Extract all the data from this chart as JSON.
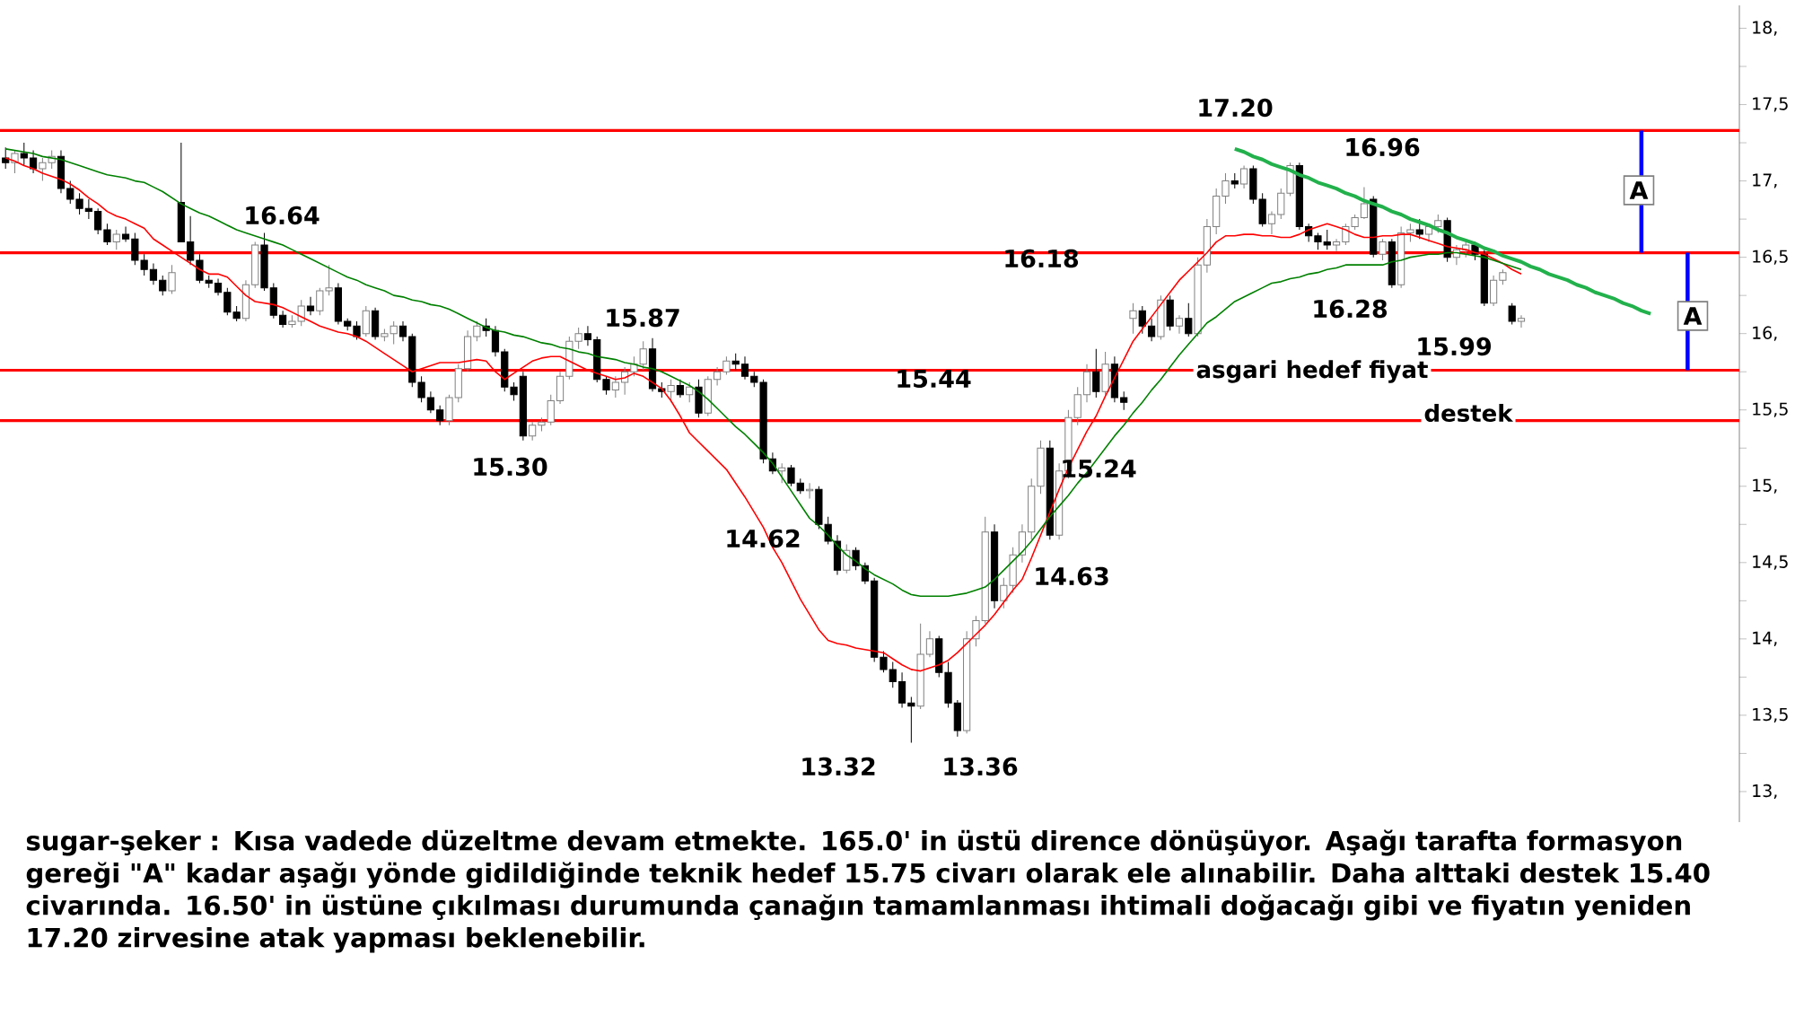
{
  "chart_data": {
    "type": "candlestick",
    "categories": [
      null,
      null,
      null,
      null,
      null,
      null,
      null,
      null,
      null,
      null,
      null,
      null,
      null,
      null,
      null,
      null,
      null,
      null,
      null,
      null,
      null,
      null,
      null,
      null,
      null,
      null,
      null,
      null,
      null,
      null,
      null,
      null,
      null,
      null,
      null,
      null,
      null,
      null,
      null,
      null,
      null,
      null,
      null,
      null,
      null,
      null,
      null,
      null,
      null,
      null,
      null,
      null,
      null,
      null,
      null,
      null,
      null,
      null,
      null,
      null,
      null,
      null,
      null,
      null,
      null,
      null,
      null,
      null,
      null,
      null,
      null,
      null,
      null,
      null,
      null,
      null,
      null,
      null,
      null,
      null,
      null,
      null,
      null,
      null,
      null,
      null,
      null,
      null,
      null,
      null,
      null,
      null,
      null,
      null,
      null,
      null,
      null,
      null,
      null,
      null,
      null,
      null,
      null,
      null,
      null,
      null,
      null,
      null,
      null,
      null,
      null,
      null,
      null,
      null,
      null,
      null,
      null,
      null,
      null,
      null,
      null,
      null,
      null,
      null,
      null,
      null,
      null,
      null,
      null,
      null,
      null,
      null,
      null,
      null,
      null,
      null,
      null,
      null,
      null,
      null,
      null,
      null,
      null,
      null,
      null,
      null,
      null,
      null,
      null,
      null,
      null,
      null,
      null,
      null,
      null,
      null,
      null,
      null,
      null,
      null,
      null,
      null,
      null,
      null,
      null,
      null,
      null,
      null,
      null,
      null,
      null,
      null,
      null,
      null,
      null,
      null,
      null,
      null,
      null,
      null,
      null,
      null,
      null,
      null,
      null,
      null,
      null,
      null
    ],
    "ohlc": [
      [
        17.15,
        17.22,
        17.08,
        17.12
      ],
      [
        17.12,
        17.2,
        17.05,
        17.18
      ],
      [
        17.18,
        17.25,
        17.1,
        17.15
      ],
      [
        17.15,
        17.2,
        17.05,
        17.08
      ],
      [
        17.08,
        17.15,
        17.0,
        17.12
      ],
      [
        17.12,
        17.2,
        17.08,
        17.16
      ],
      [
        17.16,
        17.2,
        16.92,
        16.95
      ],
      [
        16.95,
        17.0,
        16.85,
        16.88
      ],
      [
        16.88,
        16.92,
        16.78,
        16.82
      ],
      [
        16.82,
        16.88,
        16.75,
        16.8
      ],
      [
        16.8,
        16.82,
        16.65,
        16.68
      ],
      [
        16.68,
        16.72,
        16.58,
        16.6
      ],
      [
        16.6,
        16.68,
        16.55,
        16.65
      ],
      [
        16.65,
        16.7,
        16.6,
        16.62
      ],
      [
        16.62,
        16.66,
        16.45,
        16.48
      ],
      [
        16.48,
        16.52,
        16.38,
        16.42
      ],
      [
        16.42,
        16.46,
        16.32,
        16.35
      ],
      [
        16.35,
        16.38,
        16.25,
        16.28
      ],
      [
        16.28,
        16.45,
        16.26,
        16.4
      ],
      [
        16.86,
        17.25,
        16.6,
        16.6
      ],
      [
        16.6,
        16.77,
        16.45,
        16.48
      ],
      [
        16.48,
        16.52,
        16.33,
        16.35
      ],
      [
        16.35,
        16.38,
        16.3,
        16.33
      ],
      [
        16.33,
        16.36,
        16.25,
        16.27
      ],
      [
        16.27,
        16.3,
        16.12,
        16.14
      ],
      [
        16.14,
        16.18,
        16.08,
        16.1
      ],
      [
        16.1,
        16.35,
        16.08,
        16.32
      ],
      [
        16.32,
        16.6,
        16.3,
        16.58
      ],
      [
        16.58,
        16.66,
        16.28,
        16.3
      ],
      [
        16.3,
        16.33,
        16.1,
        16.12
      ],
      [
        16.12,
        16.15,
        16.04,
        16.06
      ],
      [
        16.06,
        16.12,
        16.04,
        16.08
      ],
      [
        16.08,
        16.22,
        16.05,
        16.18
      ],
      [
        16.18,
        16.24,
        16.12,
        16.15
      ],
      [
        16.15,
        16.3,
        16.12,
        16.28
      ],
      [
        16.28,
        16.45,
        16.25,
        16.3
      ],
      [
        16.3,
        16.33,
        16.06,
        16.08
      ],
      [
        16.08,
        16.1,
        16.02,
        16.05
      ],
      [
        16.05,
        16.08,
        15.96,
        15.98
      ],
      [
        16.0,
        16.18,
        15.98,
        16.15
      ],
      [
        16.15,
        16.17,
        15.96,
        15.98
      ],
      [
        15.98,
        16.03,
        15.95,
        16.0
      ],
      [
        16.0,
        16.08,
        15.93,
        16.05
      ],
      [
        16.05,
        16.08,
        15.95,
        15.98
      ],
      [
        15.98,
        16.0,
        15.65,
        15.68
      ],
      [
        15.68,
        15.72,
        15.55,
        15.58
      ],
      [
        15.58,
        15.62,
        15.48,
        15.5
      ],
      [
        15.5,
        15.53,
        15.4,
        15.43
      ],
      [
        15.43,
        15.6,
        15.4,
        15.58
      ],
      [
        15.58,
        15.8,
        15.55,
        15.77
      ],
      [
        15.77,
        16.02,
        15.75,
        15.98
      ],
      [
        15.98,
        16.08,
        15.95,
        16.05
      ],
      [
        16.05,
        16.1,
        15.98,
        16.02
      ],
      [
        16.02,
        16.05,
        15.85,
        15.88
      ],
      [
        15.88,
        15.9,
        15.62,
        15.65
      ],
      [
        15.65,
        15.68,
        15.56,
        15.6
      ],
      [
        15.72,
        15.75,
        15.3,
        15.33
      ],
      [
        15.33,
        15.42,
        15.3,
        15.4
      ],
      [
        15.4,
        15.45,
        15.36,
        15.42
      ],
      [
        15.42,
        15.6,
        15.4,
        15.56
      ],
      [
        15.56,
        15.75,
        15.54,
        15.72
      ],
      [
        15.72,
        15.98,
        15.7,
        15.95
      ],
      [
        15.95,
        16.04,
        15.9,
        16.0
      ],
      [
        16.0,
        16.05,
        15.92,
        15.96
      ],
      [
        15.96,
        15.98,
        15.68,
        15.7
      ],
      [
        15.7,
        15.72,
        15.6,
        15.63
      ],
      [
        15.63,
        15.72,
        15.58,
        15.68
      ],
      [
        15.68,
        15.78,
        15.6,
        15.75
      ],
      [
        15.75,
        15.85,
        15.72,
        15.8
      ],
      [
        15.8,
        15.95,
        15.76,
        15.9
      ],
      [
        15.9,
        15.97,
        15.62,
        15.64
      ],
      [
        15.64,
        15.68,
        15.58,
        15.62
      ],
      [
        15.62,
        15.7,
        15.55,
        15.66
      ],
      [
        15.66,
        15.7,
        15.58,
        15.6
      ],
      [
        15.6,
        15.68,
        15.55,
        15.65
      ],
      [
        15.65,
        15.7,
        15.45,
        15.48
      ],
      [
        15.48,
        15.72,
        15.46,
        15.7
      ],
      [
        15.7,
        15.78,
        15.66,
        15.75
      ],
      [
        15.75,
        15.85,
        15.73,
        15.82
      ],
      [
        15.82,
        15.87,
        15.76,
        15.8
      ],
      [
        15.8,
        15.85,
        15.7,
        15.72
      ],
      [
        15.72,
        15.75,
        15.65,
        15.68
      ],
      [
        15.68,
        15.7,
        15.15,
        15.18
      ],
      [
        15.18,
        15.22,
        15.08,
        15.1
      ],
      [
        15.1,
        15.15,
        15.02,
        15.12
      ],
      [
        15.12,
        15.14,
        15.0,
        15.02
      ],
      [
        15.02,
        15.05,
        14.95,
        14.97
      ],
      [
        14.97,
        15.02,
        14.92,
        14.98
      ],
      [
        14.98,
        15.0,
        14.72,
        14.75
      ],
      [
        14.75,
        14.8,
        14.62,
        14.64
      ],
      [
        14.64,
        14.68,
        14.42,
        14.45
      ],
      [
        14.45,
        14.62,
        14.43,
        14.58
      ],
      [
        14.58,
        14.6,
        14.45,
        14.48
      ],
      [
        14.48,
        14.5,
        14.36,
        14.38
      ],
      [
        14.38,
        14.4,
        13.85,
        13.88
      ],
      [
        13.88,
        13.92,
        13.78,
        13.8
      ],
      [
        13.8,
        13.85,
        13.68,
        13.72
      ],
      [
        13.72,
        13.78,
        13.55,
        13.58
      ],
      [
        13.58,
        13.62,
        13.32,
        13.56
      ],
      [
        13.56,
        14.1,
        13.54,
        13.9
      ],
      [
        13.9,
        14.05,
        13.88,
        14.0
      ],
      [
        14.0,
        14.02,
        13.75,
        13.78
      ],
      [
        13.78,
        13.85,
        13.55,
        13.58
      ],
      [
        13.58,
        13.6,
        13.36,
        13.4
      ],
      [
        13.4,
        14.05,
        13.38,
        14.0
      ],
      [
        14.0,
        14.15,
        13.95,
        14.12
      ],
      [
        14.12,
        14.8,
        14.1,
        14.7
      ],
      [
        14.7,
        14.75,
        14.2,
        14.25
      ],
      [
        14.25,
        14.4,
        14.2,
        14.35
      ],
      [
        14.35,
        14.6,
        14.3,
        14.55
      ],
      [
        14.55,
        14.75,
        14.5,
        14.7
      ],
      [
        14.7,
        15.05,
        14.65,
        15.0
      ],
      [
        15.0,
        15.3,
        14.95,
        15.25
      ],
      [
        15.25,
        15.3,
        14.65,
        14.68
      ],
      [
        14.68,
        15.15,
        14.65,
        15.1
      ],
      [
        15.1,
        15.5,
        15.05,
        15.45
      ],
      [
        15.45,
        15.65,
        15.4,
        15.6
      ],
      [
        15.6,
        15.8,
        15.55,
        15.75
      ],
      [
        15.75,
        15.9,
        15.58,
        15.62
      ],
      [
        15.62,
        15.88,
        15.6,
        15.8
      ],
      [
        15.8,
        15.85,
        15.55,
        15.58
      ],
      [
        15.58,
        15.62,
        15.5,
        15.55
      ],
      [
        16.1,
        16.2,
        16.0,
        16.15
      ],
      [
        16.15,
        16.18,
        16.0,
        16.05
      ],
      [
        16.05,
        16.1,
        15.95,
        15.98
      ],
      [
        15.98,
        16.25,
        15.96,
        16.22
      ],
      [
        16.22,
        16.25,
        16.02,
        16.05
      ],
      [
        16.05,
        16.12,
        16.0,
        16.1
      ],
      [
        16.1,
        16.2,
        15.98,
        16.0
      ],
      [
        16.0,
        16.5,
        15.98,
        16.45
      ],
      [
        16.45,
        16.75,
        16.4,
        16.7
      ],
      [
        16.7,
        16.95,
        16.65,
        16.9
      ],
      [
        16.9,
        17.05,
        16.85,
        17.0
      ],
      [
        17.0,
        17.05,
        16.95,
        16.98
      ],
      [
        16.98,
        17.1,
        16.95,
        17.08
      ],
      [
        17.08,
        17.1,
        16.85,
        16.88
      ],
      [
        16.88,
        16.92,
        16.7,
        16.72
      ],
      [
        16.72,
        16.8,
        16.65,
        16.78
      ],
      [
        16.78,
        16.95,
        16.75,
        16.92
      ],
      [
        16.92,
        17.12,
        16.9,
        17.1
      ],
      [
        17.1,
        17.12,
        16.68,
        16.7
      ],
      [
        16.7,
        16.72,
        16.6,
        16.64
      ],
      [
        16.64,
        16.66,
        16.55,
        16.6
      ],
      [
        16.6,
        16.68,
        16.55,
        16.58
      ],
      [
        16.58,
        16.62,
        16.54,
        16.6
      ],
      [
        16.6,
        16.72,
        16.58,
        16.7
      ],
      [
        16.7,
        16.78,
        16.68,
        16.76
      ],
      [
        16.76,
        16.96,
        16.75,
        16.85
      ],
      [
        16.88,
        16.9,
        16.5,
        16.52
      ],
      [
        16.52,
        16.62,
        16.48,
        16.6
      ],
      [
        16.6,
        16.62,
        16.3,
        16.32
      ],
      [
        16.32,
        16.7,
        16.3,
        16.66
      ],
      [
        16.66,
        16.72,
        16.6,
        16.68
      ],
      [
        16.68,
        16.75,
        16.62,
        16.65
      ],
      [
        16.65,
        16.72,
        16.6,
        16.7
      ],
      [
        16.7,
        16.78,
        16.66,
        16.74
      ],
      [
        16.74,
        16.76,
        16.47,
        16.5
      ],
      [
        16.5,
        16.58,
        16.45,
        16.55
      ],
      [
        16.55,
        16.62,
        16.5,
        16.58
      ],
      [
        16.58,
        16.6,
        16.48,
        16.52
      ],
      [
        16.52,
        16.55,
        16.18,
        16.2
      ],
      [
        16.2,
        16.38,
        16.18,
        16.35
      ],
      [
        16.35,
        16.42,
        16.32,
        16.4
      ],
      [
        16.18,
        16.2,
        16.06,
        16.08
      ],
      [
        16.08,
        16.12,
        16.04,
        16.1
      ],
      null,
      null,
      null,
      null,
      null,
      null,
      null,
      null,
      null,
      null,
      null,
      null,
      null,
      null,
      null,
      null,
      null,
      null,
      null,
      null,
      null,
      null,
      null
    ],
    "series": [
      {
        "type": "line",
        "color": "#ff0000",
        "values": [
          17.15,
          17.13,
          17.1,
          17.08,
          17.05,
          17.03,
          17.01,
          16.98,
          16.94,
          16.89,
          16.85,
          16.8,
          16.77,
          16.75,
          16.72,
          16.69,
          16.62,
          16.58,
          16.54,
          16.5,
          16.46,
          16.42,
          16.39,
          16.39,
          16.37,
          16.31,
          16.25,
          16.21,
          16.2,
          16.19,
          16.17,
          16.14,
          16.11,
          16.08,
          16.05,
          16.03,
          16.01,
          16.0,
          15.98,
          15.95,
          15.91,
          15.87,
          15.83,
          15.79,
          15.75,
          15.77,
          15.79,
          15.81,
          15.81,
          15.81,
          15.82,
          15.83,
          15.82,
          15.75,
          15.7,
          15.74,
          15.78,
          15.82,
          15.84,
          15.85,
          15.85,
          15.82,
          15.79,
          15.76,
          15.74,
          15.72,
          15.7,
          15.71,
          15.74,
          15.72,
          15.68,
          15.64,
          15.56,
          15.46,
          15.35,
          15.29,
          15.23,
          15.17,
          15.11,
          15.02,
          14.93,
          14.83,
          14.73,
          14.6,
          14.5,
          14.38,
          14.26,
          14.16,
          14.06,
          13.99,
          13.97,
          13.96,
          13.94,
          13.93,
          13.92,
          13.91,
          13.87,
          13.83,
          13.8,
          13.79,
          13.81,
          13.83,
          13.86,
          13.91,
          13.97,
          14.03,
          14.09,
          14.16,
          14.24,
          14.32,
          14.39,
          14.53,
          14.68,
          14.83,
          14.98,
          15.12,
          15.24,
          15.36,
          15.46,
          15.59,
          15.71,
          15.83,
          15.95,
          16.03,
          16.11,
          16.19,
          16.27,
          16.35,
          16.41,
          16.47,
          16.53,
          16.6,
          16.64,
          16.64,
          16.65,
          16.65,
          16.64,
          16.64,
          16.63,
          16.63,
          16.65,
          16.68,
          16.7,
          16.72,
          16.7,
          16.68,
          16.65,
          16.63,
          16.63,
          16.64,
          16.64,
          16.65,
          16.65,
          16.63,
          16.61,
          16.59,
          16.57,
          16.56,
          16.55,
          16.53,
          16.52,
          16.49,
          16.46,
          16.42,
          16.39,
          null,
          null,
          null,
          null,
          null,
          null,
          null,
          null,
          null,
          null,
          null,
          null,
          null,
          null,
          null,
          null,
          null,
          null,
          null,
          null,
          null,
          null,
          null
        ]
      },
      {
        "type": "line",
        "color": "#008000",
        "values": [
          17.21,
          17.2,
          17.19,
          17.18,
          17.16,
          17.15,
          17.14,
          17.12,
          17.1,
          17.08,
          17.06,
          17.04,
          17.03,
          17.02,
          17.0,
          16.99,
          16.96,
          16.93,
          16.89,
          16.85,
          16.82,
          16.79,
          16.77,
          16.74,
          16.71,
          16.68,
          16.66,
          16.64,
          16.62,
          16.6,
          16.58,
          16.55,
          16.52,
          16.49,
          16.46,
          16.43,
          16.4,
          16.37,
          16.35,
          16.32,
          16.3,
          16.28,
          16.25,
          16.24,
          16.22,
          16.21,
          16.19,
          16.18,
          16.16,
          16.13,
          16.1,
          16.07,
          16.04,
          16.02,
          16.01,
          15.99,
          15.98,
          15.96,
          15.94,
          15.93,
          15.91,
          15.9,
          15.88,
          15.87,
          15.85,
          15.84,
          15.83,
          15.81,
          15.8,
          15.78,
          15.77,
          15.75,
          15.72,
          15.69,
          15.66,
          15.62,
          15.57,
          15.51,
          15.45,
          15.39,
          15.34,
          15.28,
          15.22,
          15.15,
          15.06,
          14.97,
          14.88,
          14.79,
          14.74,
          14.68,
          14.61,
          14.55,
          14.51,
          14.46,
          14.42,
          14.39,
          14.36,
          14.32,
          14.29,
          14.28,
          14.28,
          14.28,
          14.28,
          14.29,
          14.3,
          14.32,
          14.34,
          14.39,
          14.45,
          14.51,
          14.57,
          14.64,
          14.72,
          14.8,
          14.87,
          14.94,
          15.02,
          15.09,
          15.17,
          15.25,
          15.33,
          15.4,
          15.48,
          15.55,
          15.63,
          15.7,
          15.78,
          15.86,
          15.93,
          16.0,
          16.07,
          16.11,
          16.16,
          16.21,
          16.24,
          16.27,
          16.3,
          16.33,
          16.34,
          16.36,
          16.37,
          16.39,
          16.4,
          16.42,
          16.43,
          16.45,
          16.45,
          16.45,
          16.45,
          16.45,
          16.47,
          16.48,
          16.5,
          16.51,
          16.52,
          16.52,
          16.53,
          16.53,
          16.52,
          16.51,
          16.5,
          16.48,
          16.46,
          16.44,
          16.42,
          null,
          null,
          null,
          null,
          null,
          null,
          null,
          null,
          null,
          null,
          null,
          null,
          null,
          null,
          null,
          null,
          null,
          null,
          null,
          null,
          null,
          null,
          null
        ]
      },
      {
        "type": "line",
        "color": "#22b14c",
        "values": [
          null,
          null,
          null,
          null,
          null,
          null,
          null,
          null,
          null,
          null,
          null,
          null,
          null,
          null,
          null,
          null,
          null,
          null,
          null,
          null,
          null,
          null,
          null,
          null,
          null,
          null,
          null,
          null,
          null,
          null,
          null,
          null,
          null,
          null,
          null,
          null,
          null,
          null,
          null,
          null,
          null,
          null,
          null,
          null,
          null,
          null,
          null,
          null,
          null,
          null,
          null,
          null,
          null,
          null,
          null,
          null,
          null,
          null,
          null,
          null,
          null,
          null,
          null,
          null,
          null,
          null,
          null,
          null,
          null,
          null,
          null,
          null,
          null,
          null,
          null,
          null,
          null,
          null,
          null,
          null,
          null,
          null,
          null,
          null,
          null,
          null,
          null,
          null,
          null,
          null,
          null,
          null,
          null,
          null,
          null,
          null,
          null,
          null,
          null,
          null,
          null,
          null,
          null,
          null,
          null,
          null,
          null,
          null,
          null,
          null,
          null,
          null,
          null,
          null,
          null,
          null,
          null,
          null,
          null,
          null,
          null,
          null,
          null,
          null,
          null,
          null,
          null,
          null,
          null,
          null,
          null,
          null,
          null,
          17.21,
          17.19,
          17.16,
          17.14,
          17.11,
          17.09,
          17.07,
          17.04,
          17.02,
          16.99,
          16.97,
          16.95,
          16.92,
          16.9,
          16.87,
          16.85,
          16.83,
          16.8,
          16.78,
          16.75,
          16.73,
          16.71,
          16.68,
          16.66,
          16.63,
          16.61,
          16.59,
          16.56,
          16.54,
          16.51,
          16.49,
          16.47,
          16.44,
          16.42,
          16.39,
          16.37,
          16.35,
          16.32,
          16.3,
          16.27,
          16.25,
          16.23,
          16.2,
          16.18,
          16.15,
          16.13,
          null,
          null,
          null,
          null,
          null,
          null,
          null,
          null,
          null
        ]
      },
      {
        "type": "bar",
        "color": "#0000ff",
        "values": [
          null,
          null,
          null,
          null,
          null,
          null,
          null,
          null,
          null,
          null,
          null,
          null,
          null,
          null,
          null,
          null,
          null,
          null,
          null,
          null,
          null,
          null,
          null,
          null,
          null,
          null,
          null,
          null,
          null,
          null,
          null,
          null,
          null,
          null,
          null,
          null,
          null,
          null,
          null,
          null,
          null,
          null,
          null,
          null,
          null,
          null,
          null,
          null,
          null,
          null,
          null,
          null,
          null,
          null,
          null,
          null,
          null,
          null,
          null,
          null,
          null,
          null,
          null,
          null,
          null,
          null,
          null,
          null,
          null,
          null,
          null,
          null,
          null,
          null,
          null,
          null,
          null,
          null,
          null,
          null,
          null,
          null,
          null,
          null,
          null,
          null,
          null,
          null,
          null,
          null,
          null,
          null,
          null,
          null,
          null,
          null,
          null,
          null,
          null,
          null,
          null,
          null,
          null,
          null,
          null,
          null,
          null,
          null,
          null,
          null,
          null,
          null,
          null,
          null,
          null,
          null,
          null,
          null,
          null,
          null,
          null,
          null,
          null,
          null,
          null,
          null,
          null,
          null,
          null,
          null,
          null,
          null,
          null,
          null,
          null,
          null,
          null,
          null,
          null,
          null,
          null,
          null,
          null,
          null,
          null,
          null,
          null,
          null,
          null,
          null,
          null,
          null,
          null,
          null,
          null,
          null,
          null,
          null,
          null,
          null,
          null,
          null,
          null,
          null,
          null,
          null,
          null,
          null,
          null,
          null,
          null,
          null,
          null,
          null,
          null,
          null,
          null,
          0.8,
          null,
          null,
          null,
          null,
          0.77,
          null,
          null,
          null,
          null,
          null
        ],
        "base": [
          null,
          null,
          null,
          null,
          null,
          null,
          null,
          null,
          null,
          null,
          null,
          null,
          null,
          null,
          null,
          null,
          null,
          null,
          null,
          null,
          null,
          null,
          null,
          null,
          null,
          null,
          null,
          null,
          null,
          null,
          null,
          null,
          null,
          null,
          null,
          null,
          null,
          null,
          null,
          null,
          null,
          null,
          null,
          null,
          null,
          null,
          null,
          null,
          null,
          null,
          null,
          null,
          null,
          null,
          null,
          null,
          null,
          null,
          null,
          null,
          null,
          null,
          null,
          null,
          null,
          null,
          null,
          null,
          null,
          null,
          null,
          null,
          null,
          null,
          null,
          null,
          null,
          null,
          null,
          null,
          null,
          null,
          null,
          null,
          null,
          null,
          null,
          null,
          null,
          null,
          null,
          null,
          null,
          null,
          null,
          null,
          null,
          null,
          null,
          null,
          null,
          null,
          null,
          null,
          null,
          null,
          null,
          null,
          null,
          null,
          null,
          null,
          null,
          null,
          null,
          null,
          null,
          null,
          null,
          null,
          null,
          null,
          null,
          null,
          null,
          null,
          null,
          null,
          null,
          null,
          null,
          null,
          null,
          null,
          null,
          null,
          null,
          null,
          null,
          null,
          null,
          null,
          null,
          null,
          null,
          null,
          null,
          null,
          null,
          null,
          null,
          null,
          null,
          null,
          null,
          null,
          null,
          null,
          null,
          null,
          null,
          null,
          null,
          null,
          null,
          null,
          null,
          null,
          null,
          null,
          null,
          null,
          null,
          null,
          null,
          null,
          null,
          16.53,
          null,
          null,
          null,
          null,
          15.76,
          null,
          null,
          null,
          null,
          null
        ]
      }
    ],
    "ylim": [
      12.8,
      18.15
    ],
    "yticks": [
      {
        "value": 13,
        "label": "13,"
      },
      {
        "value": 13.25,
        "label": null
      },
      {
        "value": 13.5,
        "label": "13,5"
      },
      {
        "value": 13.75,
        "label": null
      },
      {
        "value": 14,
        "label": "14,"
      },
      {
        "value": 14.25,
        "label": null
      },
      {
        "value": 14.5,
        "label": "14,5"
      },
      {
        "value": 14.75,
        "label": null
      },
      {
        "value": 15,
        "label": "15,"
      },
      {
        "value": 15.25,
        "label": null
      },
      {
        "value": 15.5,
        "label": "15,5"
      },
      {
        "value": 15.75,
        "label": null
      },
      {
        "value": 16,
        "label": "16,"
      },
      {
        "value": 16.25,
        "label": null
      },
      {
        "value": 16.5,
        "label": "16,5"
      },
      {
        "value": 16.75,
        "label": null
      },
      {
        "value": 17,
        "label": "17,"
      },
      {
        "value": 17.25,
        "label": null
      },
      {
        "value": 17.5,
        "label": "17,5"
      },
      {
        "value": 17.75,
        "label": null
      },
      {
        "value": 18,
        "label": "18,"
      }
    ],
    "tick_labels": "y",
    "ref_lines": [
      {
        "axis": "y",
        "value": 17.33,
        "color": "#ff0000"
      },
      {
        "axis": "y",
        "value": 16.53,
        "color": "#ff0000"
      },
      {
        "axis": "y",
        "value": 15.76,
        "color": "#ff0000",
        "label": "asgari hedef fiyat"
      },
      {
        "axis": "y",
        "value": 15.43,
        "color": "#ff0000",
        "label": "destek"
      }
    ],
    "annotations": [
      "17.20",
      "16.96",
      "16.64",
      "16.18",
      "16.28",
      "15.87",
      "15.99",
      "15.44",
      "15.30",
      "15.24",
      "14.62",
      "14.63",
      "13.32",
      "13.36",
      "A",
      "A",
      "sugar-şeker : Kısa vadede düzeltme devam etmekte. 165.0' in üstü dirence dönüşüyor. Aşağı tarafta formasyon gereği \"A\" kadar aşağı yönde gidildiğinde teknik hedef 15.75 civarı olarak ele alınabilir. Daha alttaki destek 15.40 civarında. 16.50' in üstüne çıkılması durumunda çanağın tamamlanması ihtimali doğacağı gibi ve fiyatın yeniden 17.20 zirvesine atak yapması beklenebilir."
    ]
  }
}
